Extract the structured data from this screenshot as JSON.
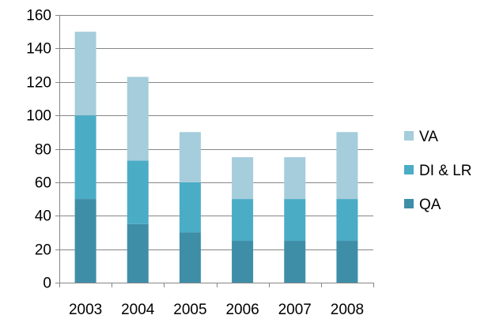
{
  "chart_data": {
    "type": "bar",
    "stacked": true,
    "categories": [
      "2003",
      "2004",
      "2005",
      "2006",
      "2007",
      "2008"
    ],
    "series": [
      {
        "name": "QA",
        "values": [
          50,
          35,
          30,
          25,
          25,
          25
        ],
        "color": "#3F8EA8"
      },
      {
        "name": "DI & LR",
        "values": [
          50,
          38,
          30,
          25,
          25,
          25
        ],
        "color": "#4BACC6"
      },
      {
        "name": "VA",
        "values": [
          50,
          50,
          30,
          25,
          25,
          40
        ],
        "color": "#A5CDDC"
      }
    ],
    "legend_order": [
      "VA",
      "DI & LR",
      "QA"
    ],
    "ylim": [
      0,
      160
    ],
    "yticks": [
      0,
      20,
      40,
      60,
      80,
      100,
      120,
      140,
      160
    ],
    "grid": true,
    "legend_position": "right",
    "title": "",
    "xlabel": "",
    "ylabel": ""
  }
}
